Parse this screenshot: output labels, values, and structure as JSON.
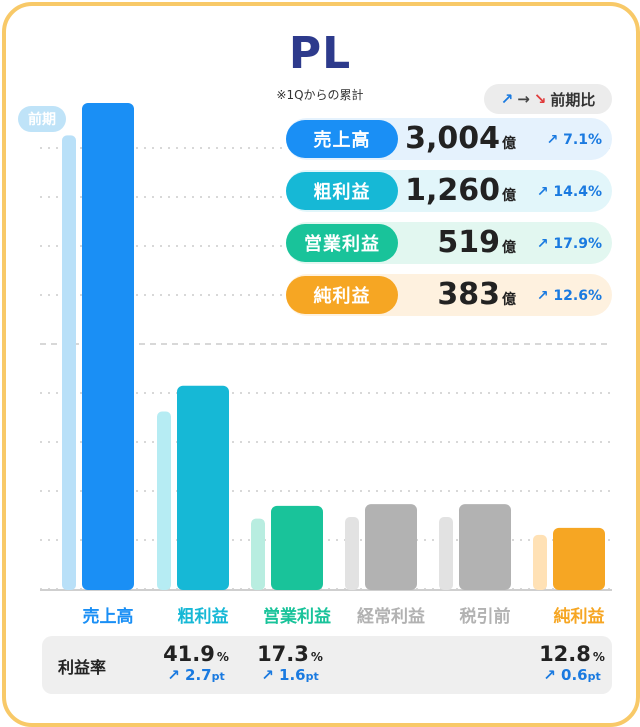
{
  "title": "PL",
  "subtitle": "※1Qからの累計",
  "legend": {
    "up": "↗",
    "flat": "→",
    "down": "↘",
    "label": "前期比"
  },
  "prev_tag": "前期",
  "unit": "億",
  "margin_label": "利益率",
  "colors": {
    "sales": "#1a8ff5",
    "gross": "#16b8d6",
    "op": "#19c39a",
    "ord": "#b2b2b2",
    "pre": "#b2b2b2",
    "net": "#f6a623"
  },
  "summary": [
    {
      "label": "売上高",
      "value": "3,004",
      "change": "7.1%",
      "color": "#1a8ff5",
      "bg": "#e5f2fd"
    },
    {
      "label": "粗利益",
      "value": "1,260",
      "change": "14.4%",
      "color": "#16b8d6",
      "bg": "#e2f6fa"
    },
    {
      "label": "営業利益",
      "value": "519",
      "change": "17.9%",
      "color": "#19c39a",
      "bg": "#e2f7f0"
    },
    {
      "label": "純利益",
      "value": "383",
      "change": "12.6%",
      "color": "#f6a623",
      "bg": "#fef1df"
    }
  ],
  "chart_data": {
    "type": "bar",
    "categories": [
      "売上高",
      "粗利益",
      "営業利益",
      "経常利益",
      "税引前",
      "純利益"
    ],
    "series": [
      {
        "name": "前期",
        "values": [
          2804,
          1101,
          440,
          450,
          450,
          340
        ]
      },
      {
        "values": [
          3004,
          1260,
          519,
          530,
          530,
          383
        ]
      }
    ],
    "ylim": [
      0,
      3250
    ],
    "grid": true
  },
  "margins": [
    {
      "value": "41.9",
      "unit": "%",
      "change": "2.7",
      "change_unit": "pt"
    },
    {
      "value": "17.3",
      "unit": "%",
      "change": "1.6",
      "change_unit": "pt"
    },
    {
      "value": "12.8",
      "unit": "%",
      "change": "0.6",
      "change_unit": "pt"
    }
  ]
}
